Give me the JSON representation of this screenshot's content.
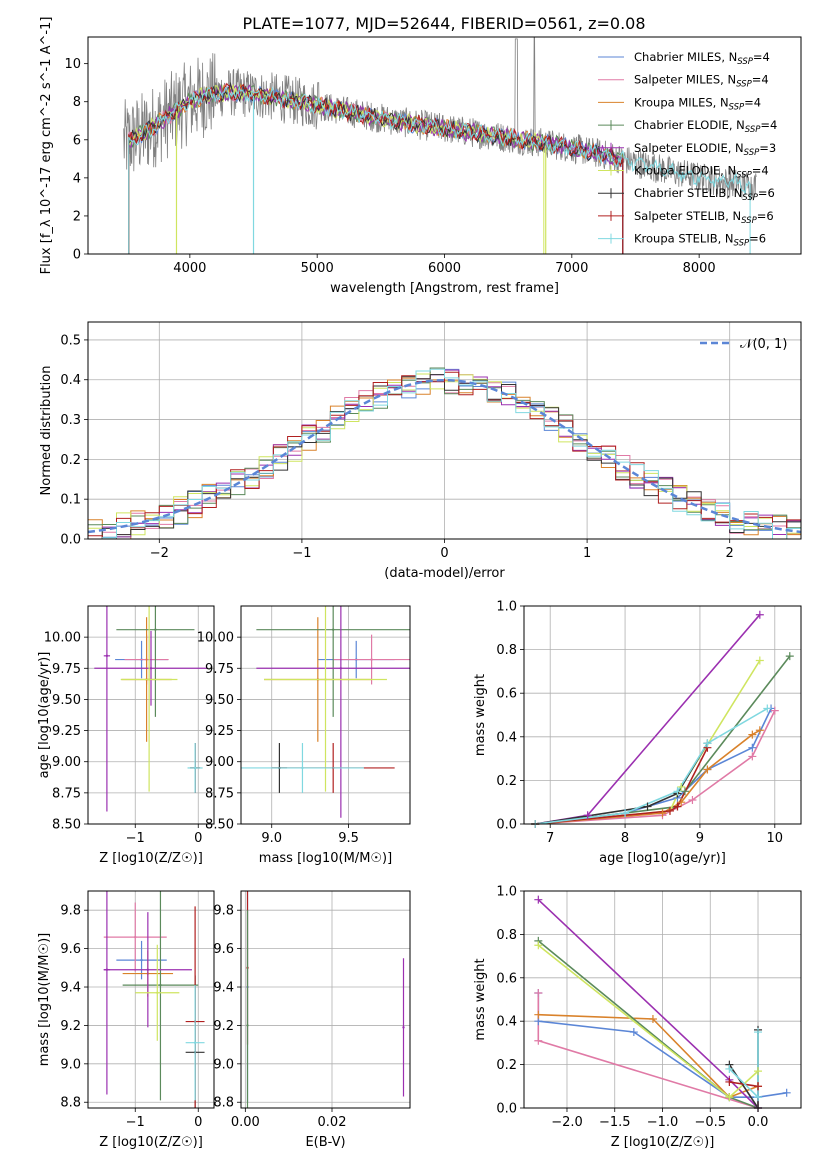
{
  "figure_title": "PLATE=1077, MJD=52644, FIBERID=0561, z=0.08",
  "colors": {
    "c0": "#5b86d6",
    "c1": "#e07aa6",
    "c2": "#d9822b",
    "c3": "#5b8a5b",
    "c4": "#9b30b0",
    "c5": "#cfe560",
    "c6": "#333333",
    "c7": "#b02020",
    "c8": "#80d8e0",
    "spectrum": "#808080",
    "normal": "#5b86d6"
  },
  "chart_data": [
    {
      "id": "spectrum",
      "type": "line",
      "xlabel": "wavelength [Angstrom, rest frame]",
      "ylabel": "Flux [f_λ 10^-17 erg cm^-2 s^-1 A^-1]",
      "xlim": [
        3200,
        8800
      ],
      "ylim": [
        0,
        11.4
      ],
      "xticks": [
        4000,
        5000,
        6000,
        7000,
        8000
      ],
      "yticks": [
        0,
        2,
        4,
        6,
        8,
        10
      ],
      "grid": false,
      "legend_position": "top-right",
      "legend": [
        {
          "label": "Chabrier MILES, N",
          "sub": "SSP",
          "suffix": "=4"
        },
        {
          "label": "Salpeter MILES, N",
          "sub": "SSP",
          "suffix": "=4"
        },
        {
          "label": "Kroupa MILES, N",
          "sub": "SSP",
          "suffix": "=4"
        },
        {
          "label": "Chabrier ELODIE, N",
          "sub": "SSP",
          "suffix": "=4"
        },
        {
          "label": "Salpeter ELODIE, N",
          "sub": "SSP",
          "suffix": "=3"
        },
        {
          "label": "Kroupa ELODIE, N",
          "sub": "SSP",
          "suffix": "=4"
        },
        {
          "label": "Chabrier STELIB, N",
          "sub": "SSP",
          "suffix": "=6"
        },
        {
          "label": "Salpeter STELIB, N",
          "sub": "SSP",
          "suffix": "=6"
        },
        {
          "label": "Kroupa STELIB, N",
          "sub": "SSP",
          "suffix": "=6"
        }
      ],
      "model_continuum": {
        "x": [
          3500,
          3650,
          3800,
          3900,
          4000,
          4100,
          4300,
          4500,
          4700,
          5000,
          5300,
          5600,
          6000,
          6300,
          6600,
          6900,
          7200,
          7500,
          7800,
          8100,
          8400
        ],
        "y": [
          5.9,
          6.4,
          7.1,
          7.6,
          8.0,
          8.3,
          8.5,
          8.4,
          8.2,
          7.8,
          7.4,
          7.0,
          6.6,
          6.3,
          6.0,
          5.7,
          5.3,
          4.8,
          4.3,
          3.9,
          3.6
        ]
      }
    },
    {
      "id": "residuals",
      "type": "line",
      "xlabel": "(data-model)/error",
      "ylabel": "Normed distribution",
      "xlim": [
        -2.5,
        2.5
      ],
      "ylim": [
        0,
        0.545
      ],
      "xticks": [
        -2,
        -1,
        0,
        1,
        2
      ],
      "yticks": [
        0.0,
        0.1,
        0.2,
        0.3,
        0.4,
        0.5
      ],
      "grid": true,
      "legend_position": "top-right",
      "legend_label": "𝒩(0, 1)"
    },
    {
      "id": "age_vs_Z",
      "type": "scatter",
      "xlabel": "Z [log10(Z/Z☉)]",
      "ylabel": "age  [log10(age/yr)]",
      "xlim": [
        -1.75,
        0.25
      ],
      "ylim": [
        8.5,
        10.25
      ],
      "xticks": [
        -1,
        0
      ],
      "yticks": [
        8.5,
        8.75,
        9.0,
        9.25,
        9.5,
        9.75,
        10.0
      ],
      "grid": true,
      "series": [
        {
          "x": -0.9,
          "y": 9.82,
          "xerr": 0.42,
          "yerr": 0.15,
          "c": "c0"
        },
        {
          "x": -0.82,
          "y": 9.82,
          "xerr": 0.35,
          "yerr": 0.2,
          "c": "c1"
        },
        {
          "x": -0.82,
          "y": 9.66,
          "xerr": 0.4,
          "yerr": 0.5,
          "c": "c2"
        },
        {
          "x": -0.68,
          "y": 10.06,
          "xerr": 0.62,
          "yerr": 0.7,
          "c": "c3"
        },
        {
          "x": -0.75,
          "y": 9.75,
          "xerr": 0.9,
          "yerr": 0.3,
          "c": "c4"
        },
        {
          "x": -0.78,
          "y": 9.66,
          "xerr": 0.45,
          "yerr": 0.9,
          "c": "c5"
        },
        {
          "x": -0.05,
          "y": 8.95,
          "xerr": 0.08,
          "yerr": 0.2,
          "c": "c6"
        },
        {
          "x": -0.05,
          "y": 8.95,
          "xerr": 0.08,
          "yerr": 0.2,
          "c": "c7"
        },
        {
          "x": -0.05,
          "y": 8.95,
          "xerr": 0.12,
          "yerr": 0.2,
          "c": "c8"
        },
        {
          "x": -1.45,
          "y": 9.85,
          "xerr": 0.05,
          "yerr": 1.25,
          "c": "c4"
        }
      ]
    },
    {
      "id": "age_vs_mass",
      "type": "scatter",
      "xlabel": "mass [log10(M/M☉)]",
      "ylabel": "",
      "xlim": [
        8.8,
        9.9
      ],
      "ylim": [
        8.5,
        10.25
      ],
      "xticks": [
        9.0,
        9.5
      ],
      "yticks": [
        8.5,
        8.75,
        9.0,
        9.25,
        9.5,
        9.75,
        10.0
      ],
      "grid": true,
      "series": [
        {
          "x": 9.55,
          "y": 9.82,
          "xerr": 0.25,
          "yerr": 0.15,
          "c": "c0"
        },
        {
          "x": 9.65,
          "y": 9.82,
          "xerr": 0.25,
          "yerr": 0.2,
          "c": "c1"
        },
        {
          "x": 9.3,
          "y": 9.66,
          "xerr": 0.35,
          "yerr": 0.5,
          "c": "c2"
        },
        {
          "x": 9.4,
          "y": 10.06,
          "xerr": 0.5,
          "yerr": 0.7,
          "c": "c3"
        },
        {
          "x": 9.45,
          "y": 9.75,
          "xerr": 0.55,
          "yerr": 1.2,
          "c": "c4"
        },
        {
          "x": 9.35,
          "y": 9.66,
          "xerr": 0.4,
          "yerr": 0.9,
          "c": "c5"
        },
        {
          "x": 9.05,
          "y": 8.95,
          "xerr": 0.05,
          "yerr": 0.2,
          "c": "c6"
        },
        {
          "x": 9.4,
          "y": 8.95,
          "xerr": 0.4,
          "yerr": 0.2,
          "c": "c7"
        },
        {
          "x": 9.2,
          "y": 8.95,
          "xerr": 0.4,
          "yerr": 0.2,
          "c": "c8"
        }
      ]
    },
    {
      "id": "weight_vs_age",
      "type": "line",
      "xlabel": "age  [log10(age/yr)]",
      "ylabel": "mass weight",
      "xlim": [
        6.65,
        10.35
      ],
      "ylim": [
        0.0,
        1.0
      ],
      "xticks": [
        7,
        8,
        9,
        10
      ],
      "yticks": [
        0.0,
        0.2,
        0.4,
        0.6,
        0.8,
        1.0
      ],
      "grid": true,
      "series": [
        {
          "c": "c0",
          "x": [
            6.8,
            8.0,
            8.7,
            9.1,
            9.7,
            9.95
          ],
          "y": [
            0.0,
            0.05,
            0.12,
            0.25,
            0.35,
            0.53
          ]
        },
        {
          "c": "c1",
          "x": [
            6.8,
            8.5,
            8.9,
            9.7,
            10.0
          ],
          "y": [
            0.0,
            0.04,
            0.11,
            0.31,
            0.52
          ]
        },
        {
          "c": "c2",
          "x": [
            6.8,
            8.5,
            8.75,
            9.1,
            9.7,
            9.8
          ],
          "y": [
            0.0,
            0.05,
            0.1,
            0.25,
            0.41,
            0.43
          ]
        },
        {
          "c": "c3",
          "x": [
            6.8,
            8.7,
            8.8,
            10.2
          ],
          "y": [
            0.0,
            0.08,
            0.15,
            0.77
          ]
        },
        {
          "c": "c4",
          "x": [
            6.8,
            7.5,
            9.8
          ],
          "y": [
            0.0,
            0.04,
            0.96
          ]
        },
        {
          "c": "c5",
          "x": [
            6.8,
            8.6,
            8.75,
            9.8
          ],
          "y": [
            0.0,
            0.06,
            0.17,
            0.75
          ]
        },
        {
          "c": "c6",
          "x": [
            6.8,
            8.3,
            8.7,
            9.1
          ],
          "y": [
            0.0,
            0.08,
            0.14,
            0.37
          ]
        },
        {
          "c": "c7",
          "x": [
            6.8,
            8.6,
            8.7,
            9.1
          ],
          "y": [
            0.0,
            0.06,
            0.08,
            0.35
          ]
        },
        {
          "c": "c8",
          "x": [
            6.8,
            8.0,
            8.7,
            9.1,
            9.9
          ],
          "y": [
            0.0,
            0.05,
            0.15,
            0.37,
            0.53
          ]
        }
      ]
    },
    {
      "id": "mass_vs_Z",
      "type": "scatter",
      "xlabel": "Z [log10(Z/Z☉)]",
      "ylabel": "mass [log10(M/M☉)]",
      "xlim": [
        -1.75,
        0.25
      ],
      "ylim": [
        8.77,
        9.9
      ],
      "xticks": [
        -1,
        0
      ],
      "yticks": [
        8.8,
        9.0,
        9.2,
        9.4,
        9.6,
        9.8
      ],
      "grid": true,
      "series": [
        {
          "x": -0.9,
          "y": 9.54,
          "xerr": 0.4,
          "yerr": 0.1,
          "c": "c0"
        },
        {
          "x": -1.0,
          "y": 9.66,
          "xerr": 0.5,
          "yerr": 0.18,
          "c": "c1"
        },
        {
          "x": -0.8,
          "y": 9.47,
          "xerr": 0.4,
          "yerr": 0.12,
          "c": "c2"
        },
        {
          "x": -0.6,
          "y": 9.41,
          "xerr": 0.6,
          "yerr": 0.6,
          "c": "c3"
        },
        {
          "x": -0.8,
          "y": 9.49,
          "xerr": 0.7,
          "yerr": 0.3,
          "c": "c4"
        },
        {
          "x": -0.65,
          "y": 9.37,
          "xerr": 0.35,
          "yerr": 0.25,
          "c": "c5"
        },
        {
          "x": -0.05,
          "y": 9.06,
          "xerr": 0.15,
          "yerr": 0.4,
          "c": "c6"
        },
        {
          "x": -0.05,
          "y": 9.22,
          "xerr": 0.15,
          "yerr": 0.6,
          "c": "c7"
        },
        {
          "x": -0.05,
          "y": 9.11,
          "xerr": 0.15,
          "yerr": 0.3,
          "c": "c8"
        },
        {
          "x": -1.45,
          "y": 9.49,
          "xerr": 0.05,
          "yerr": 0.65,
          "c": "c4"
        }
      ]
    },
    {
      "id": "mass_vs_ebv",
      "type": "scatter",
      "xlabel": "E(B-V)",
      "ylabel": "",
      "xlim": [
        -0.001,
        0.038
      ],
      "ylim": [
        8.77,
        9.9
      ],
      "xticks": [
        0.0,
        0.02
      ],
      "yticks": [
        8.8,
        9.0,
        9.2,
        9.4,
        9.6,
        9.8
      ],
      "grid": true,
      "series": [
        {
          "x": 0.0005,
          "y": 9.4,
          "xerr": 0,
          "yerr": 0.6,
          "c": "c0"
        },
        {
          "x": 0.0005,
          "y": 9.5,
          "xerr": 0,
          "yerr": 0.4,
          "c": "c7"
        },
        {
          "x": 0.0005,
          "y": 9.2,
          "xerr": 0,
          "yerr": 0.6,
          "c": "c3"
        },
        {
          "x": 0.0365,
          "y": 9.19,
          "xerr": 0,
          "yerr": 0.36,
          "c": "c4"
        }
      ]
    },
    {
      "id": "weight_vs_Z",
      "type": "line",
      "xlabel": "Z [log10(Z/Z☉)]",
      "ylabel": "mass weight",
      "xlim": [
        -2.45,
        0.45
      ],
      "ylim": [
        0.0,
        1.0
      ],
      "xticks": [
        -2.0,
        -1.5,
        -1.0,
        -0.5,
        0.0
      ],
      "yticks": [
        0.0,
        0.2,
        0.4,
        0.6,
        0.8,
        1.0
      ],
      "grid": true,
      "series": [
        {
          "c": "c0",
          "x": [
            -2.3,
            -2.3,
            -1.3,
            -0.3,
            0.0,
            0.3
          ],
          "y": [
            0.53,
            0.4,
            0.35,
            0.05,
            0.05,
            0.07
          ]
        },
        {
          "c": "c1",
          "x": [
            -2.3,
            -2.3,
            0.0,
            0.0
          ],
          "y": [
            0.53,
            0.31,
            0.0,
            0.1
          ]
        },
        {
          "c": "c2",
          "x": [
            -2.3,
            -1.1,
            -0.3,
            0.0
          ],
          "y": [
            0.43,
            0.41,
            0.05,
            0.1
          ]
        },
        {
          "c": "c3",
          "x": [
            -2.3,
            -0.3,
            0.0
          ],
          "y": [
            0.77,
            0.05,
            0.0
          ]
        },
        {
          "c": "c4",
          "x": [
            -2.3,
            -0.3,
            0.0
          ],
          "y": [
            0.96,
            0.13,
            0.0
          ]
        },
        {
          "c": "c5",
          "x": [
            -2.3,
            -0.3,
            0.0
          ],
          "y": [
            0.75,
            0.05,
            0.17
          ]
        },
        {
          "c": "c6",
          "x": [
            -0.3,
            0.0,
            0.0
          ],
          "y": [
            0.2,
            0.0,
            0.36
          ]
        },
        {
          "c": "c7",
          "x": [
            -0.3,
            0.0
          ],
          "y": [
            0.12,
            0.1
          ]
        },
        {
          "c": "c8",
          "x": [
            -0.3,
            0.0,
            0.0
          ],
          "y": [
            0.18,
            0.05,
            0.35
          ]
        }
      ]
    }
  ]
}
